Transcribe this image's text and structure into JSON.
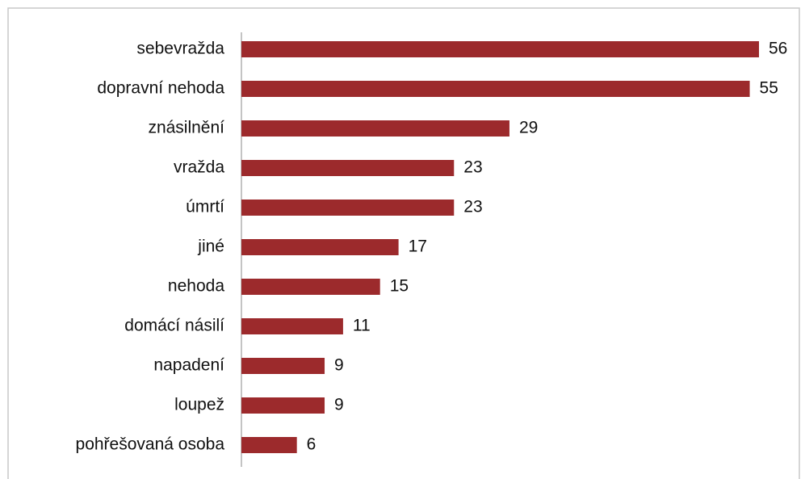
{
  "chart_data": {
    "type": "bar",
    "orientation": "horizontal",
    "categories": [
      "sebevražda",
      "dopravní nehoda",
      "znásilnění",
      "vražda",
      "úmrtí",
      "jiné",
      "nehoda",
      "domácí násilí",
      "napadení",
      "loupež",
      "pohřešovaná osoba"
    ],
    "values": [
      56,
      55,
      29,
      23,
      23,
      17,
      15,
      11,
      9,
      9,
      6
    ],
    "color": "#9c2a2c"
  }
}
